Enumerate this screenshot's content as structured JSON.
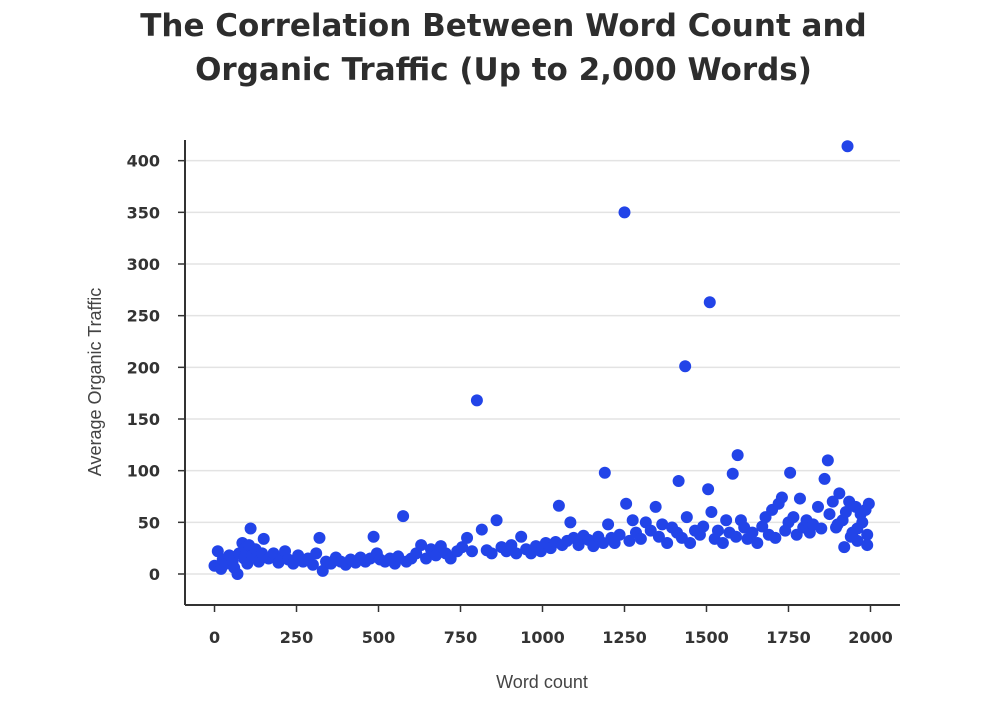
{
  "chart_data": {
    "type": "scatter",
    "title_line1": "The Correlation Between Word Count and",
    "title_line2": "Organic Traffic (Up to 2,000 Words)",
    "xlabel": "Word count",
    "ylabel": "Average Organic Traffic",
    "xlim": [
      -90,
      2090
    ],
    "ylim": [
      -30,
      420
    ],
    "x_ticks": [
      0,
      250,
      500,
      750,
      1000,
      1250,
      1500,
      1750,
      2000
    ],
    "y_ticks": [
      0,
      50,
      100,
      150,
      200,
      250,
      300,
      350,
      400
    ],
    "grid": "horizontal",
    "point_color": "#2244e8",
    "points": [
      [
        0,
        8
      ],
      [
        10,
        22
      ],
      [
        20,
        5
      ],
      [
        25,
        14
      ],
      [
        35,
        10
      ],
      [
        45,
        18
      ],
      [
        55,
        12
      ],
      [
        60,
        6
      ],
      [
        70,
        0
      ],
      [
        75,
        20
      ],
      [
        85,
        30
      ],
      [
        90,
        15
      ],
      [
        95,
        25
      ],
      [
        100,
        10
      ],
      [
        105,
        28
      ],
      [
        110,
        44
      ],
      [
        115,
        18
      ],
      [
        125,
        24
      ],
      [
        135,
        12
      ],
      [
        145,
        20
      ],
      [
        150,
        34
      ],
      [
        165,
        15
      ],
      [
        180,
        20
      ],
      [
        195,
        11
      ],
      [
        205,
        16
      ],
      [
        215,
        22
      ],
      [
        225,
        14
      ],
      [
        240,
        10
      ],
      [
        255,
        18
      ],
      [
        270,
        12
      ],
      [
        285,
        15
      ],
      [
        300,
        9
      ],
      [
        310,
        20
      ],
      [
        320,
        35
      ],
      [
        330,
        3
      ],
      [
        340,
        12
      ],
      [
        355,
        10
      ],
      [
        370,
        16
      ],
      [
        385,
        12
      ],
      [
        400,
        9
      ],
      [
        415,
        14
      ],
      [
        430,
        11
      ],
      [
        445,
        16
      ],
      [
        460,
        12
      ],
      [
        475,
        15
      ],
      [
        485,
        36
      ],
      [
        495,
        20
      ],
      [
        505,
        14
      ],
      [
        520,
        12
      ],
      [
        535,
        15
      ],
      [
        550,
        10
      ],
      [
        560,
        17
      ],
      [
        575,
        56
      ],
      [
        585,
        12
      ],
      [
        600,
        15
      ],
      [
        615,
        20
      ],
      [
        630,
        28
      ],
      [
        645,
        15
      ],
      [
        660,
        24
      ],
      [
        675,
        18
      ],
      [
        690,
        27
      ],
      [
        705,
        20
      ],
      [
        720,
        15
      ],
      [
        740,
        22
      ],
      [
        755,
        26
      ],
      [
        770,
        35
      ],
      [
        785,
        22
      ],
      [
        800,
        168
      ],
      [
        815,
        43
      ],
      [
        830,
        23
      ],
      [
        845,
        20
      ],
      [
        860,
        52
      ],
      [
        875,
        26
      ],
      [
        890,
        22
      ],
      [
        905,
        28
      ],
      [
        920,
        20
      ],
      [
        935,
        36
      ],
      [
        950,
        24
      ],
      [
        965,
        20
      ],
      [
        980,
        27
      ],
      [
        995,
        22
      ],
      [
        1010,
        30
      ],
      [
        1025,
        25
      ],
      [
        1040,
        31
      ],
      [
        1050,
        66
      ],
      [
        1060,
        28
      ],
      [
        1075,
        32
      ],
      [
        1085,
        50
      ],
      [
        1095,
        35
      ],
      [
        1110,
        28
      ],
      [
        1125,
        37
      ],
      [
        1140,
        33
      ],
      [
        1155,
        27
      ],
      [
        1170,
        36
      ],
      [
        1185,
        30
      ],
      [
        1190,
        98
      ],
      [
        1200,
        48
      ],
      [
        1210,
        35
      ],
      [
        1220,
        30
      ],
      [
        1235,
        38
      ],
      [
        1250,
        350
      ],
      [
        1255,
        68
      ],
      [
        1265,
        32
      ],
      [
        1275,
        52
      ],
      [
        1285,
        40
      ],
      [
        1300,
        34
      ],
      [
        1315,
        50
      ],
      [
        1330,
        42
      ],
      [
        1345,
        65
      ],
      [
        1355,
        36
      ],
      [
        1365,
        48
      ],
      [
        1380,
        30
      ],
      [
        1395,
        45
      ],
      [
        1410,
        40
      ],
      [
        1415,
        90
      ],
      [
        1425,
        35
      ],
      [
        1435,
        201
      ],
      [
        1440,
        55
      ],
      [
        1450,
        30
      ],
      [
        1465,
        42
      ],
      [
        1480,
        38
      ],
      [
        1490,
        46
      ],
      [
        1505,
        82
      ],
      [
        1510,
        263
      ],
      [
        1515,
        60
      ],
      [
        1525,
        34
      ],
      [
        1535,
        42
      ],
      [
        1550,
        30
      ],
      [
        1560,
        52
      ],
      [
        1570,
        40
      ],
      [
        1580,
        97
      ],
      [
        1590,
        36
      ],
      [
        1595,
        115
      ],
      [
        1605,
        52
      ],
      [
        1615,
        45
      ],
      [
        1625,
        34
      ],
      [
        1640,
        40
      ],
      [
        1655,
        30
      ],
      [
        1670,
        46
      ],
      [
        1680,
        55
      ],
      [
        1690,
        38
      ],
      [
        1700,
        62
      ],
      [
        1710,
        35
      ],
      [
        1720,
        68
      ],
      [
        1730,
        74
      ],
      [
        1740,
        42
      ],
      [
        1750,
        50
      ],
      [
        1755,
        98
      ],
      [
        1765,
        55
      ],
      [
        1775,
        38
      ],
      [
        1785,
        73
      ],
      [
        1795,
        45
      ],
      [
        1805,
        52
      ],
      [
        1815,
        40
      ],
      [
        1825,
        48
      ],
      [
        1840,
        65
      ],
      [
        1850,
        44
      ],
      [
        1860,
        92
      ],
      [
        1870,
        110
      ],
      [
        1875,
        58
      ],
      [
        1885,
        70
      ],
      [
        1895,
        45
      ],
      [
        1905,
        78
      ],
      [
        1915,
        52
      ],
      [
        1925,
        60
      ],
      [
        1930,
        414
      ],
      [
        1935,
        70
      ],
      [
        1945,
        40
      ],
      [
        1955,
        65
      ],
      [
        1960,
        32
      ],
      [
        1970,
        58
      ],
      [
        1975,
        50
      ],
      [
        1985,
        62
      ],
      [
        1990,
        38
      ],
      [
        1995,
        68
      ],
      [
        1990,
        28
      ],
      [
        1960,
        44
      ],
      [
        1940,
        36
      ],
      [
        1920,
        26
      ],
      [
        1900,
        48
      ]
    ]
  }
}
